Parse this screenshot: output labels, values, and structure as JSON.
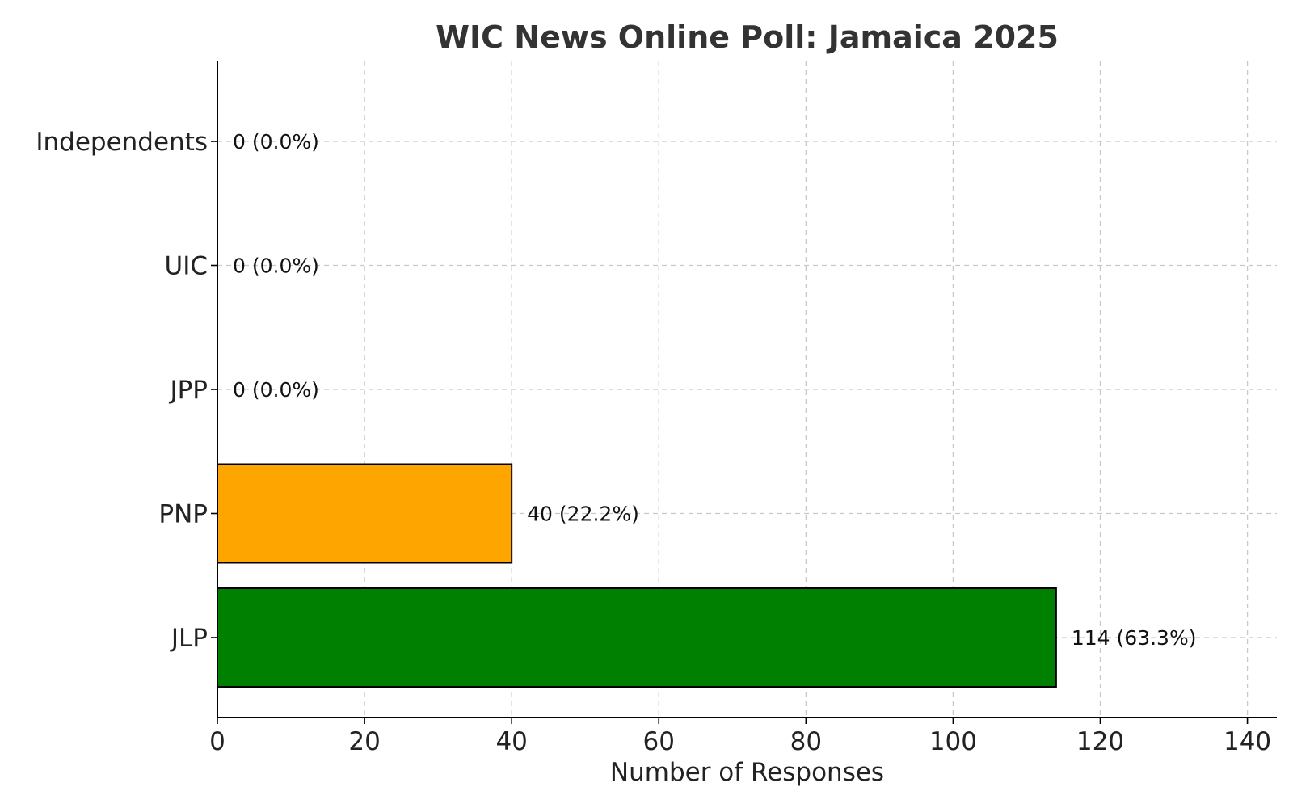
{
  "chart_data": {
    "type": "bar",
    "orientation": "horizontal",
    "title": "WIC News Online Poll: Jamaica 2025",
    "xlabel": "Number of Responses",
    "ylabel": "",
    "xlim": [
      0,
      144
    ],
    "x_ticks": [
      0,
      20,
      40,
      60,
      80,
      100,
      120,
      140
    ],
    "grid": true,
    "categories": [
      "JLP",
      "PNP",
      "JPP",
      "UIC",
      "Independents"
    ],
    "values": [
      114,
      40,
      0,
      0,
      0
    ],
    "data_labels": [
      "114 (63.3%)",
      "40 (22.2%)",
      "0 (0.0%)",
      "0 (0.0%)",
      "0 (0.0%)"
    ],
    "colors": [
      "#008000",
      "#FFA500",
      "#1f77b4",
      "#1f77b4",
      "#1f77b4"
    ]
  }
}
